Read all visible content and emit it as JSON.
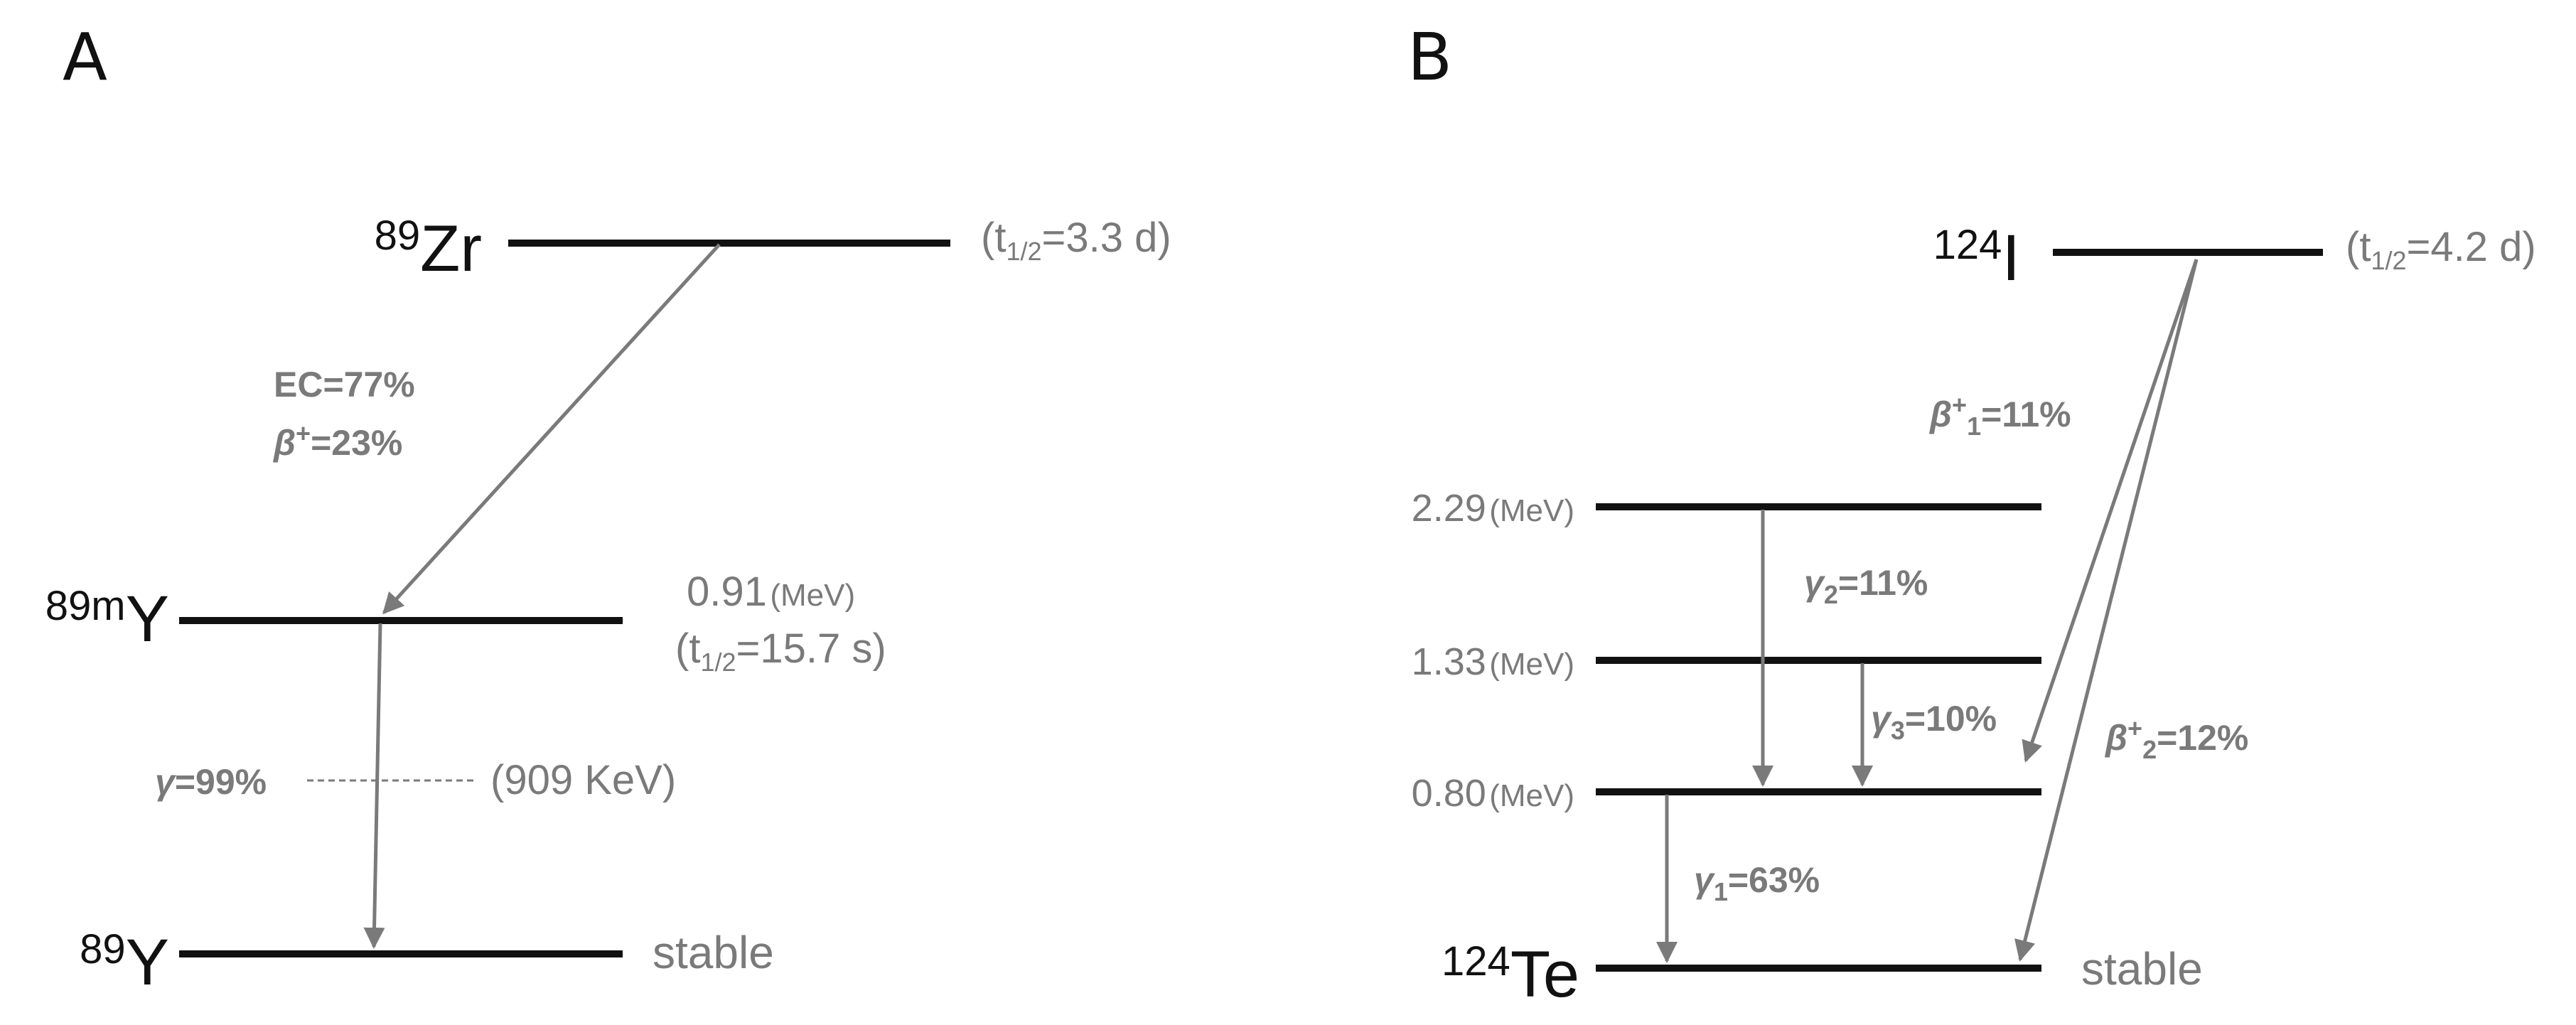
{
  "panel_a": {
    "letter": "A",
    "parent": {
      "mass": "89",
      "symbol": "Zr",
      "half_life_t": "t",
      "half_life_sub": "1/2",
      "half_life_rest": "=3.3 d"
    },
    "decay_branch": {
      "ec": "EC=77%",
      "beta_symbol": "β",
      "beta_sup": "+",
      "beta_rest": "=23%"
    },
    "metastable": {
      "mass": "89m",
      "symbol": "Y",
      "energy_value": "0.91",
      "energy_unit": "(MeV)",
      "half_life_t": "t",
      "half_life_sub": "1/2",
      "half_life_rest": "=15.7 s"
    },
    "gamma": {
      "symbol": "γ",
      "rest": "=99%",
      "energy": "(909 KeV)"
    },
    "ground": {
      "mass": "89",
      "symbol": "Y",
      "status": "stable"
    }
  },
  "panel_b": {
    "letter": "B",
    "parent": {
      "mass": "124",
      "symbol": "I",
      "half_life_t": "t",
      "half_life_sub": "1/2",
      "half_life_rest": "=4.2 d"
    },
    "levels": [
      {
        "value": "2.29",
        "unit": "(MeV)"
      },
      {
        "value": "1.33",
        "unit": "(MeV)"
      },
      {
        "value": "0.80",
        "unit": "(MeV)"
      }
    ],
    "beta1": {
      "symbol": "β",
      "sup": "+",
      "sub": "1",
      "rest": "=11%"
    },
    "beta2": {
      "symbol": "β",
      "sup": "+",
      "sub": "2",
      "rest": "=12%"
    },
    "gamma1": {
      "symbol": "γ",
      "sub": "1",
      "rest": "=63%"
    },
    "gamma2": {
      "symbol": "γ",
      "sub": "2",
      "rest": "=11%"
    },
    "gamma3": {
      "symbol": "γ",
      "sub": "3",
      "rest": "=10%"
    },
    "ground": {
      "mass": "124",
      "symbol": "Te",
      "status": "stable"
    }
  },
  "colors": {
    "level_line": "#111111",
    "annotation": "#7a7a7a",
    "nuclide_text": "#111111"
  }
}
